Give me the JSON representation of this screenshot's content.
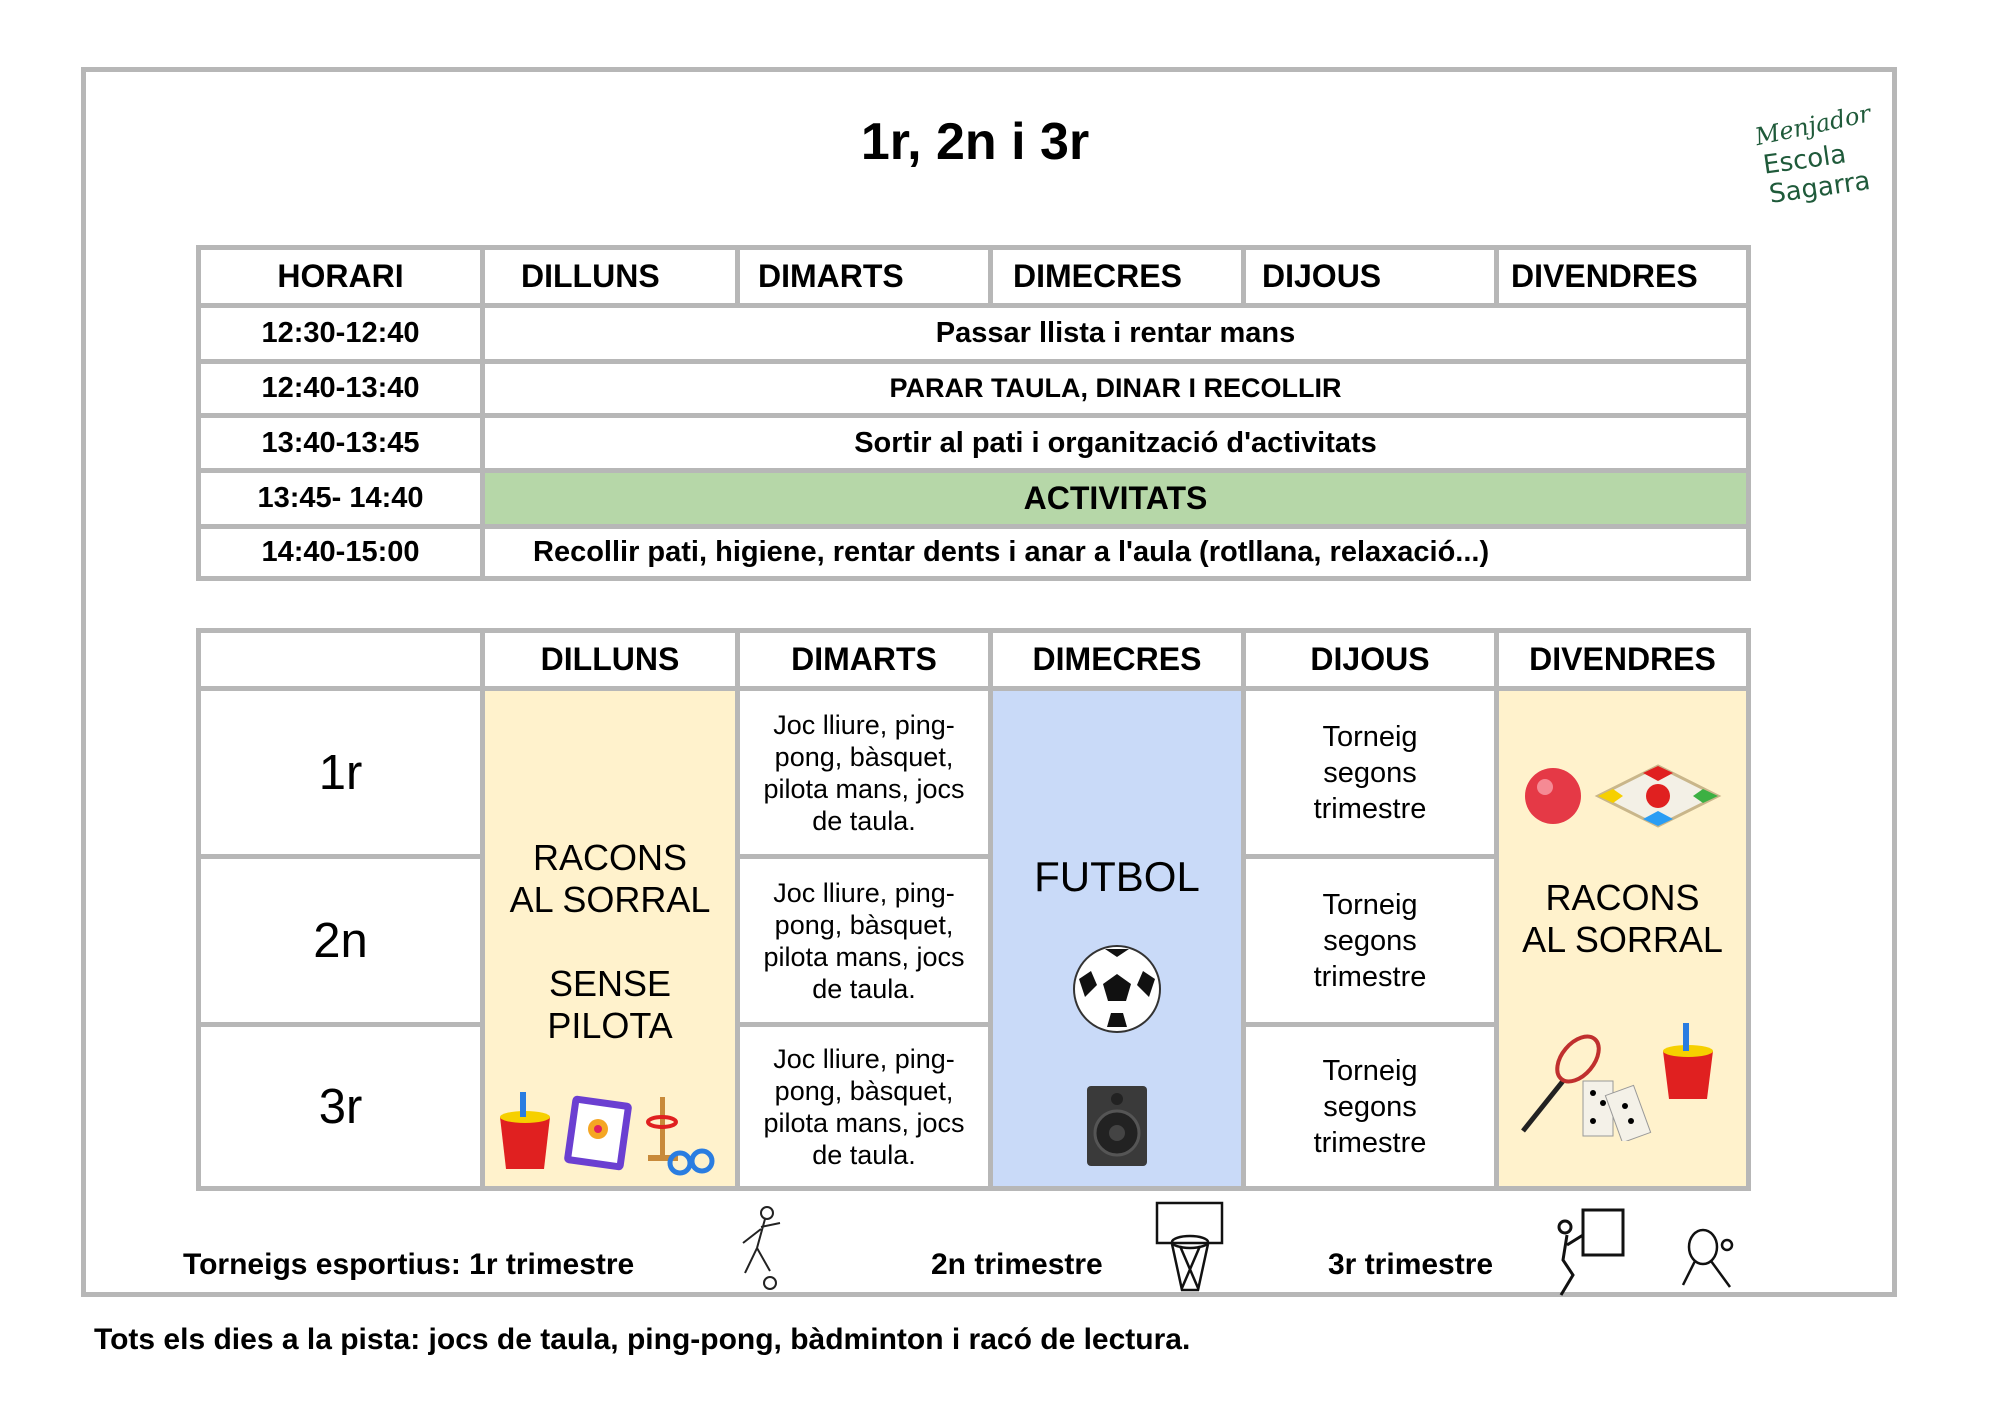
{
  "title": "1r, 2n i 3r",
  "logo": {
    "text": "Menjador Escola Sagarra",
    "color": "#1f5a3a"
  },
  "schedule": {
    "headers": [
      "HORARI",
      "DILLUNS",
      "DIMARTS",
      "DIMECRES",
      "DIJOUS",
      "DIVENDRES"
    ],
    "rows": [
      {
        "time": "12:30-12:40",
        "activity": "Passar llista i rentar mans"
      },
      {
        "time": "12:40-13:40",
        "activity": "PARAR TAULA, DINAR I RECOLLIR"
      },
      {
        "time": "13:40-13:45",
        "activity": "Sortir al pati i organització d'activitats"
      },
      {
        "time": "13:45- 14:40",
        "activity": "ACTIVITATS",
        "highlight": "#b6d7a8"
      },
      {
        "time": "14:40-15:00",
        "activity": "Recollir pati, higiene, rentar dents i anar a l'aula (rotllana, relaxació...)"
      }
    ]
  },
  "activities": {
    "headers": [
      "",
      "DILLUNS",
      "DIMARTS",
      "DIMECRES",
      "DIJOUS",
      "DIVENDRES"
    ],
    "groups": [
      "1r",
      "2n",
      "3r"
    ],
    "dilluns": {
      "line1": "RACONS",
      "line2": "AL SORRAL",
      "line3": "SENSE",
      "line4": "PILOTA",
      "color": "#fff2cc",
      "icons": [
        "bucket-icon",
        "drawing-tablet-icon",
        "ring-toss-icon"
      ]
    },
    "dimarts": [
      "Joc lliure, ping-pong, bàsquet, pilota mans, jocs de taula.",
      "Joc lliure, ping-pong, bàsquet, pilota mans, jocs de taula.",
      "Joc lliure, ping-pong, bàsquet, pilota mans, jocs de taula."
    ],
    "dimecres": {
      "label": "FUTBOL",
      "color": "#c9daf8",
      "icons": [
        "soccer-ball-icon",
        "speaker-icon"
      ]
    },
    "dijous": [
      "Torneig segons trimestre",
      "Torneig segons trimestre",
      "Torneig segons trimestre"
    ],
    "divendres": {
      "line1": "RACONS",
      "line2": "AL SORRAL",
      "color": "#fff2cc",
      "icons": [
        "ball-icon",
        "board-game-icon",
        "badminton-icon",
        "dominoes-icon",
        "bucket-icon"
      ]
    }
  },
  "footer": {
    "t1": "Torneigs esportius: 1r trimestre",
    "t2": "2n trimestre",
    "t3": "3r trimestre"
  },
  "note": "Tots els dies a la pista: jocs de taula, ping-pong, bàdminton i racó de lectura."
}
